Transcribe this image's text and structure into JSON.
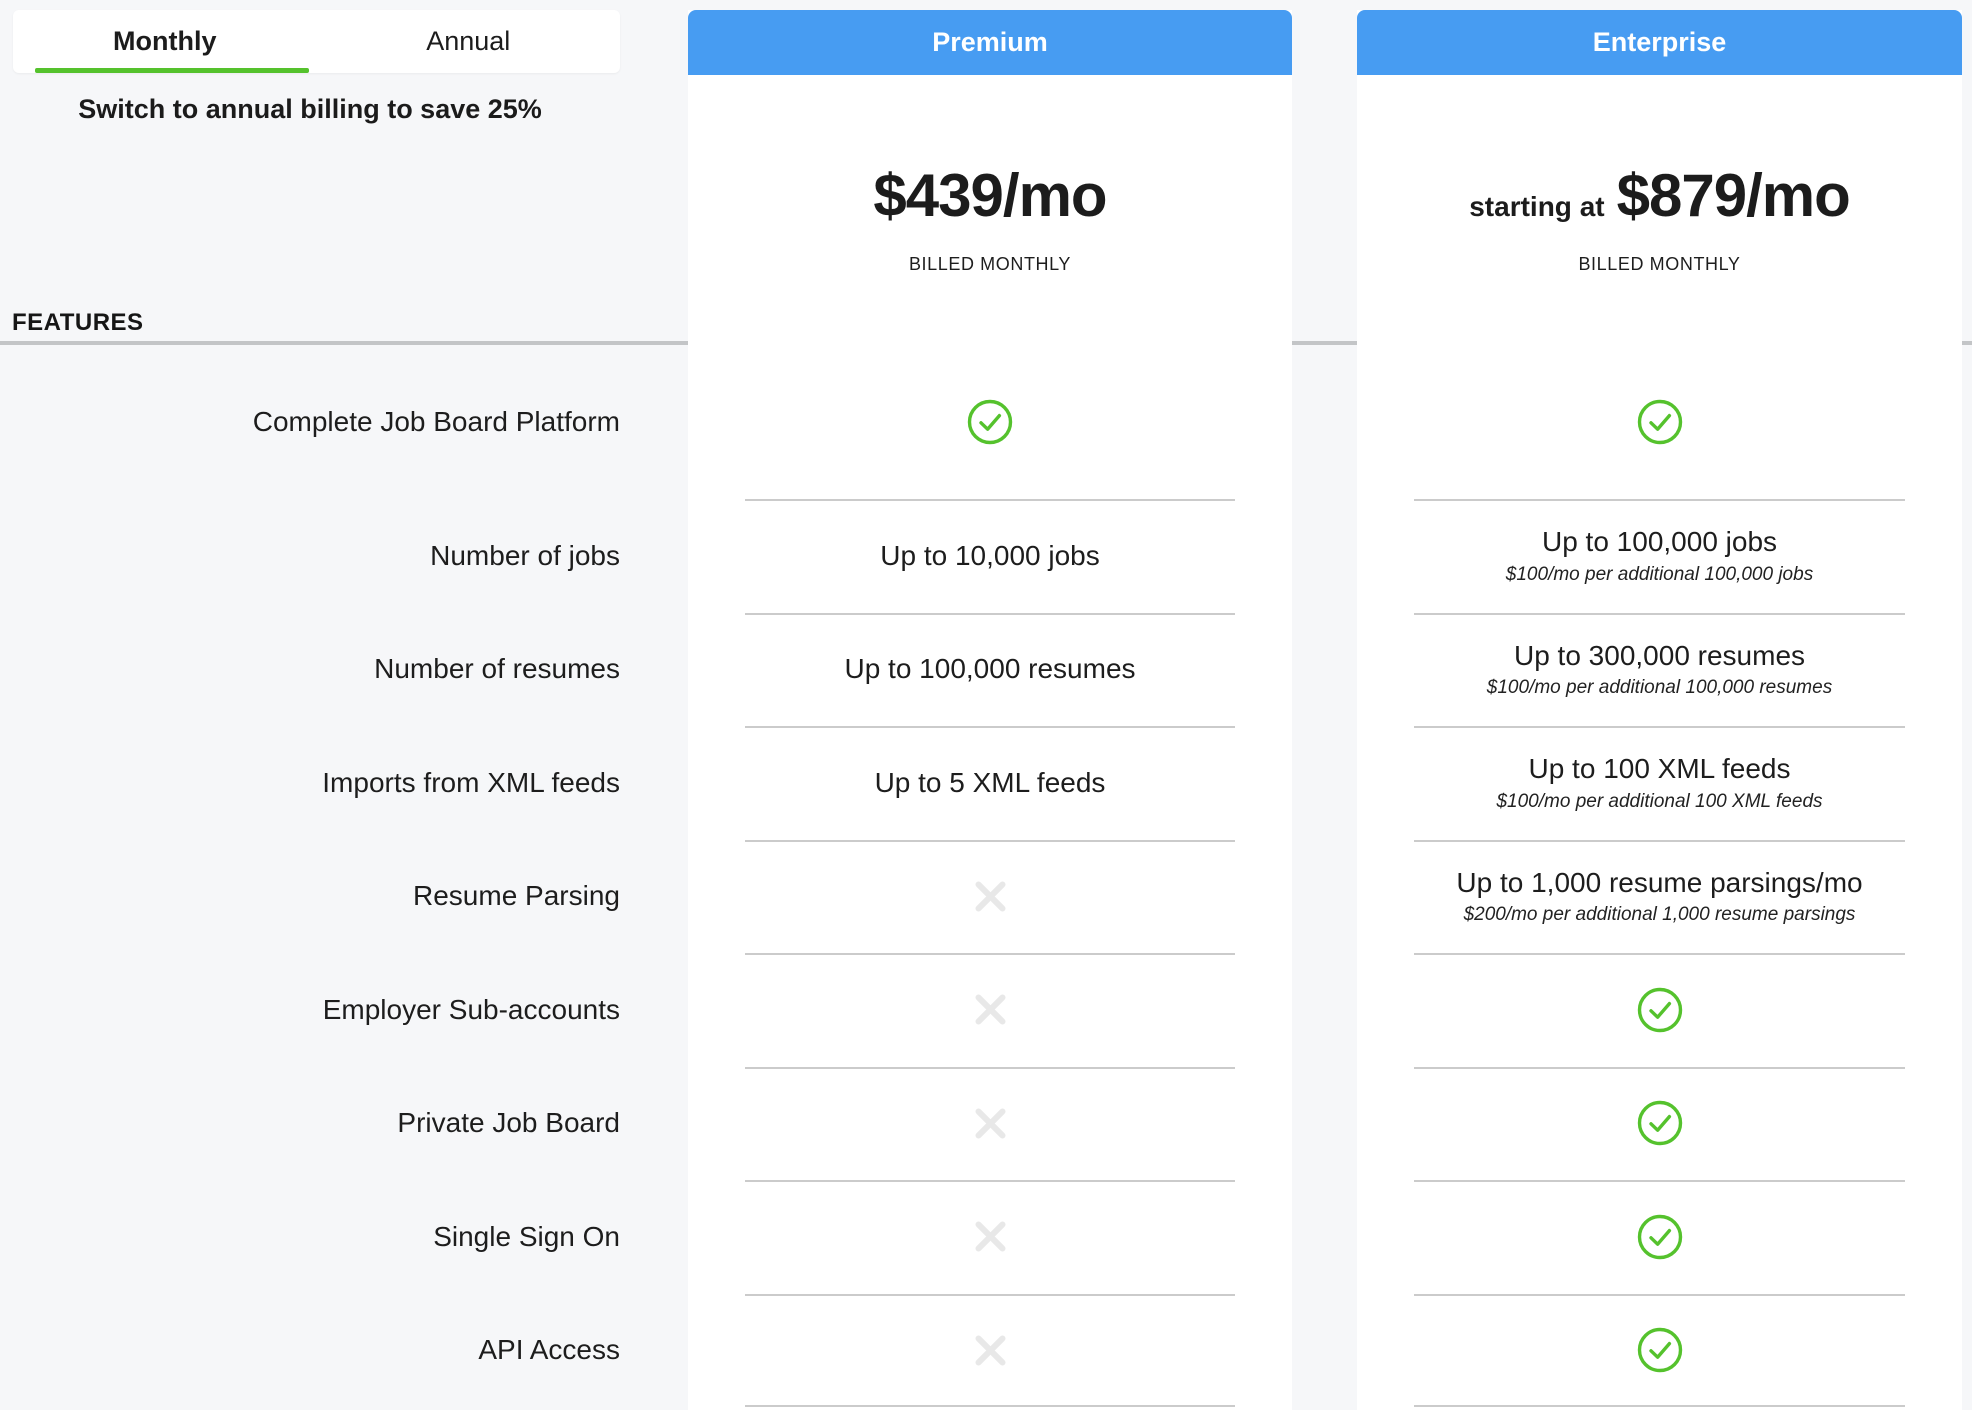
{
  "tabs": {
    "monthly": "Monthly",
    "annual": "Annual",
    "note": "Switch to annual billing to save 25%"
  },
  "features_heading": "FEATURES",
  "plans": {
    "premium": {
      "name": "Premium",
      "price": "$439/mo",
      "billing": "BILLED MONTHLY"
    },
    "enterprise": {
      "name": "Enterprise",
      "price_prefix": "starting at",
      "price": "$879/mo",
      "billing": "BILLED MONTHLY"
    }
  },
  "features": [
    {
      "label": "Complete Job Board Platform",
      "premium": {
        "type": "check"
      },
      "enterprise": {
        "type": "check"
      }
    },
    {
      "label": "Number of jobs",
      "premium": {
        "type": "text",
        "value": "Up to 10,000 jobs"
      },
      "enterprise": {
        "type": "text",
        "value": "Up to 100,000 jobs",
        "note": "$100/mo per additional 100,000 jobs"
      }
    },
    {
      "label": "Number of resumes",
      "premium": {
        "type": "text",
        "value": "Up to 100,000 resumes"
      },
      "enterprise": {
        "type": "text",
        "value": "Up to 300,000 resumes",
        "note": "$100/mo per additional 100,000 resumes"
      }
    },
    {
      "label": "Imports from XML feeds",
      "premium": {
        "type": "text",
        "value": "Up to 5 XML feeds"
      },
      "enterprise": {
        "type": "text",
        "value": "Up to 100 XML feeds",
        "note": "$100/mo per additional 100 XML feeds"
      }
    },
    {
      "label": "Resume Parsing",
      "premium": {
        "type": "cross"
      },
      "enterprise": {
        "type": "text",
        "value": "Up to 1,000 resume parsings/mo",
        "note": "$200/mo per additional 1,000 resume parsings"
      }
    },
    {
      "label": "Employer Sub-accounts",
      "premium": {
        "type": "cross"
      },
      "enterprise": {
        "type": "check"
      }
    },
    {
      "label": "Private Job Board",
      "premium": {
        "type": "cross"
      },
      "enterprise": {
        "type": "check"
      }
    },
    {
      "label": "Single Sign On",
      "premium": {
        "type": "cross"
      },
      "enterprise": {
        "type": "check"
      }
    },
    {
      "label": "API Access",
      "premium": {
        "type": "cross"
      },
      "enterprise": {
        "type": "check"
      }
    }
  ],
  "colors": {
    "accent_blue": "#479cf2",
    "accent_green": "#55c22d",
    "cross_gray": "#e8e8e8",
    "divider_gray": "#cbcbcb"
  }
}
